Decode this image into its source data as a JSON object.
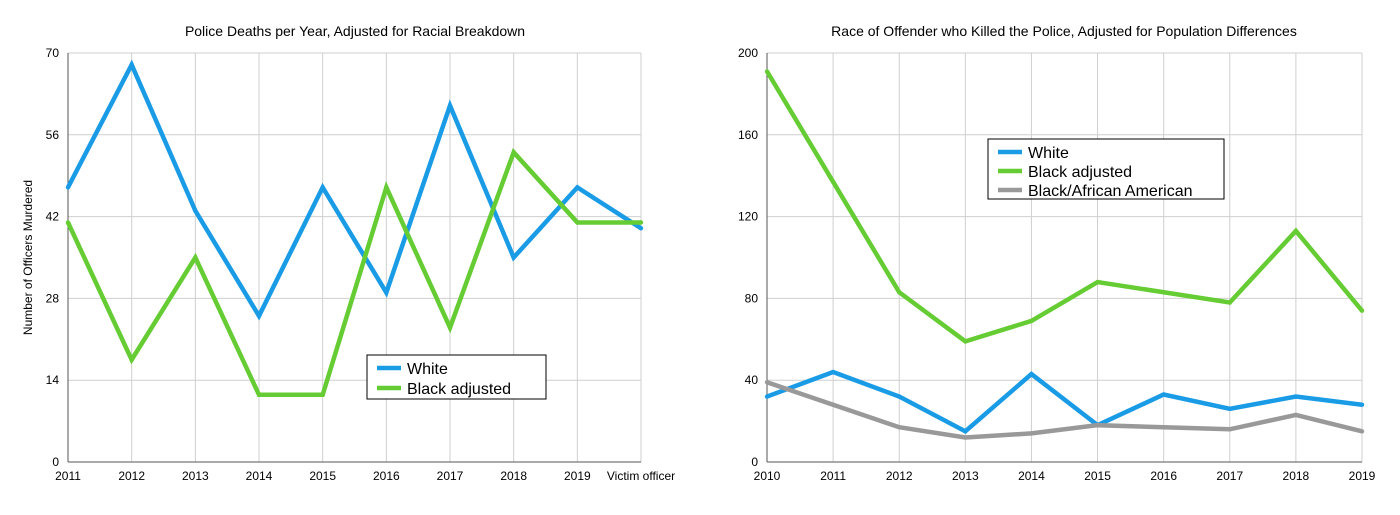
{
  "chart_data": [
    {
      "type": "line",
      "title": "Police Deaths per Year, Adjusted for Racial Breakdown",
      "xlabel": "",
      "ylabel": "Number of Officers Murdered",
      "categories": [
        "2011",
        "2012",
        "2013",
        "2014",
        "2015",
        "2016",
        "2017",
        "2018",
        "2019",
        "Victim officer"
      ],
      "ylim": [
        0,
        70
      ],
      "yticks": [
        0,
        14,
        28,
        42,
        56,
        70
      ],
      "grid": true,
      "legend_position": "lower-right",
      "series": [
        {
          "name": "White",
          "color": "#1a9be6",
          "values": [
            47,
            68,
            43,
            25,
            47,
            29,
            61,
            35,
            47,
            40
          ]
        },
        {
          "name": "Black adjusted",
          "color": "#66cc33",
          "values": [
            41,
            17.5,
            35,
            11.5,
            11.5,
            47,
            23,
            53,
            41,
            41
          ]
        }
      ]
    },
    {
      "type": "line",
      "title": "Race of Offender who Killed the Police, Adjusted for Population Differences",
      "xlabel": "",
      "ylabel": "",
      "categories": [
        "2010",
        "2011",
        "2012",
        "2013",
        "2014",
        "2015",
        "2016",
        "2017",
        "2018",
        "2019"
      ],
      "ylim": [
        0,
        200
      ],
      "yticks": [
        0,
        40,
        80,
        120,
        160,
        200
      ],
      "grid": true,
      "legend_position": "upper-center",
      "series": [
        {
          "name": "White",
          "color": "#1a9be6",
          "values": [
            32,
            44,
            32,
            15,
            43,
            18,
            33,
            26,
            32,
            28
          ]
        },
        {
          "name": "Black adjusted",
          "color": "#66cc33",
          "values": [
            191,
            137,
            83,
            59,
            69,
            88,
            83,
            78,
            113,
            74
          ]
        },
        {
          "name": "Black/African American",
          "color": "#999999",
          "values": [
            39,
            28,
            17,
            12,
            14,
            18,
            17,
            16,
            23,
            15
          ]
        }
      ]
    }
  ]
}
